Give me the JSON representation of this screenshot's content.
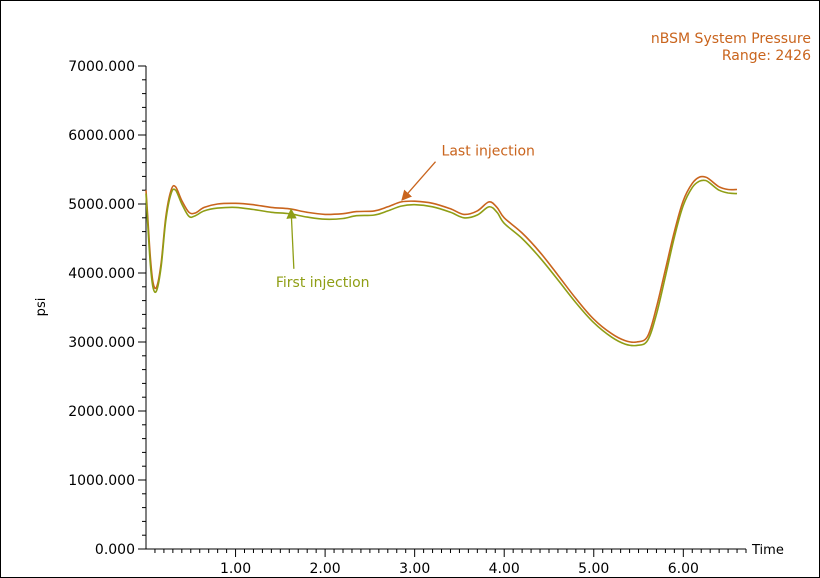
{
  "chart_data": {
    "type": "line",
    "title": "nBSM System Pressure",
    "subtitle": "Range: 2426",
    "xlabel": "Time",
    "ylabel": "psi",
    "xlim": [
      0.0,
      6.7
    ],
    "ylim": [
      0,
      7000
    ],
    "x_ticks": [
      "1.00",
      "2.00",
      "3.00",
      "4.00",
      "5.00",
      "6.00"
    ],
    "y_ticks": [
      "0.000",
      "1000.000",
      "2000.000",
      "3000.000",
      "4000.000",
      "5000.000",
      "6000.000",
      "7000.000"
    ],
    "grid": false,
    "legend_position": "top-right",
    "colors": {
      "last": "#c9641d",
      "first": "#8f9e15",
      "legend": "#c9641d"
    },
    "series": [
      {
        "x": [
          0.0,
          0.02,
          0.05,
          0.08,
          0.12,
          0.17,
          0.22,
          0.28,
          0.33,
          0.4,
          0.48,
          0.55,
          0.65,
          0.8,
          1.0,
          1.2,
          1.4,
          1.6,
          1.8,
          2.0,
          2.2,
          2.35,
          2.55,
          2.7,
          2.85,
          3.0,
          3.2,
          3.4,
          3.55,
          3.7,
          3.83,
          3.92,
          4.0,
          4.2,
          4.4,
          4.6,
          4.8,
          5.0,
          5.2,
          5.35,
          5.48,
          5.6,
          5.7,
          5.8,
          5.9,
          6.0,
          6.1,
          6.18,
          6.25,
          6.3,
          6.4,
          6.5,
          6.6
        ],
        "values": [
          5200,
          4800,
          4200,
          3850,
          3800,
          4150,
          4800,
          5200,
          5250,
          5050,
          4880,
          4870,
          4950,
          5000,
          5010,
          4990,
          4950,
          4930,
          4880,
          4850,
          4860,
          4890,
          4900,
          4960,
          5030,
          5040,
          5010,
          4930,
          4850,
          4900,
          5030,
          4950,
          4800,
          4580,
          4300,
          3970,
          3630,
          3330,
          3120,
          3020,
          3000,
          3080,
          3500,
          4050,
          4600,
          5050,
          5300,
          5390,
          5390,
          5350,
          5250,
          5210,
          5210
        ]
      },
      {
        "x": [
          0.0,
          0.02,
          0.05,
          0.08,
          0.12,
          0.17,
          0.22,
          0.28,
          0.33,
          0.4,
          0.48,
          0.55,
          0.65,
          0.8,
          1.0,
          1.2,
          1.4,
          1.6,
          1.8,
          2.0,
          2.2,
          2.35,
          2.55,
          2.7,
          2.85,
          3.0,
          3.2,
          3.4,
          3.55,
          3.7,
          3.83,
          3.92,
          4.0,
          4.2,
          4.4,
          4.6,
          4.8,
          5.0,
          5.2,
          5.35,
          5.48,
          5.6,
          5.7,
          5.8,
          5.9,
          6.0,
          6.1,
          6.18,
          6.25,
          6.3,
          6.4,
          6.5,
          6.6
        ],
        "values": [
          5150,
          4700,
          4100,
          3780,
          3750,
          4100,
          4750,
          5150,
          5200,
          5000,
          4820,
          4830,
          4900,
          4940,
          4950,
          4920,
          4880,
          4860,
          4810,
          4780,
          4790,
          4830,
          4840,
          4900,
          4970,
          4990,
          4960,
          4880,
          4800,
          4840,
          4960,
          4880,
          4720,
          4500,
          4220,
          3900,
          3570,
          3280,
          3070,
          2970,
          2950,
          3020,
          3400,
          3950,
          4520,
          4980,
          5240,
          5330,
          5340,
          5300,
          5200,
          5160,
          5150
        ]
      }
    ],
    "annotations": [
      {
        "text": "Last injection",
        "x": 3.3,
        "y": 5700,
        "arrow_to": [
          2.86,
          5060
        ]
      },
      {
        "text": "First injection",
        "x": 1.45,
        "y": 3800,
        "arrow_to": [
          1.62,
          4920
        ]
      }
    ]
  }
}
